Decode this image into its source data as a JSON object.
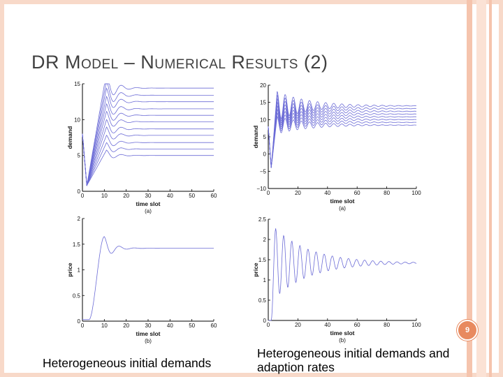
{
  "slide": {
    "title": "DR Model – Numerical Results (2)",
    "page_number": "9",
    "caption_left": "Heterogeneous initial demands",
    "caption_right": "Heterogeneous initial demands and adaption rates",
    "accent_color": "#e88a5f",
    "series_color": "#6b6bd6"
  },
  "chart_data": [
    {
      "id": "a",
      "type": "line",
      "sublabel": "(a)",
      "xlabel": "time slot",
      "ylabel": "demand",
      "xlim": [
        0,
        60
      ],
      "ylim": [
        0,
        15
      ],
      "xticks": [
        "0",
        "10",
        "20",
        "30",
        "40",
        "50",
        "60"
      ],
      "yticks": [
        "0",
        "5",
        "10",
        "15"
      ],
      "xtick_values": [
        0,
        10,
        20,
        30,
        40,
        50,
        60
      ],
      "ytick_values": [
        0,
        5,
        10,
        15
      ],
      "shape": {
        "kind": "damped",
        "dip_t": 2,
        "dip_y": 0.8,
        "rise_end": 11,
        "decay_tau": 4,
        "omega": 0.9,
        "overshoot": 0.15
      },
      "series": [
        {
          "steady": 14.4
        },
        {
          "steady": 13.4
        },
        {
          "steady": 12.5
        },
        {
          "steady": 11.5
        },
        {
          "steady": 10.6
        },
        {
          "steady": 9.7
        },
        {
          "steady": 8.7
        },
        {
          "steady": 7.8
        },
        {
          "steady": 6.8
        },
        {
          "steady": 5.9
        },
        {
          "steady": 5.0
        }
      ]
    },
    {
      "id": "b",
      "type": "line",
      "sublabel": "(b)",
      "xlabel": "time slot",
      "ylabel": "price",
      "xlim": [
        0,
        60
      ],
      "ylim": [
        0,
        2
      ],
      "xticks": [
        "0",
        "10",
        "20",
        "30",
        "40",
        "50",
        "60"
      ],
      "yticks": [
        "0",
        "0.5",
        "1",
        "1.5",
        "2"
      ],
      "xtick_values": [
        0,
        10,
        20,
        30,
        40,
        50,
        60
      ],
      "ytick_values": [
        0,
        0.5,
        1,
        1.5,
        2
      ],
      "shape": {
        "kind": "price",
        "low_until": 3,
        "low_y": 0.03,
        "rise_end": 10,
        "decay_tau": 4,
        "omega": 0.9,
        "overshoot": 0.16
      },
      "series": [
        {
          "steady": 1.42
        }
      ]
    },
    {
      "id": "c",
      "type": "line",
      "sublabel": "(a)",
      "xlabel": "time slot",
      "ylabel": "demand",
      "xlim": [
        0,
        100
      ],
      "ylim": [
        -10,
        20
      ],
      "xticks": [
        "0",
        "20",
        "40",
        "60",
        "80",
        "100"
      ],
      "yticks": [
        "−10",
        "−5",
        "0",
        "5",
        "10",
        "15",
        "20"
      ],
      "xtick_values": [
        0,
        20,
        40,
        60,
        80,
        100
      ],
      "ytick_values": [
        -10,
        -5,
        0,
        5,
        10,
        15,
        20
      ],
      "shape": {
        "kind": "damped",
        "dip_t": 2,
        "dip_y": -4,
        "rise_end": 6,
        "decay_tau": 22,
        "omega": 1.15,
        "overshoot": 0.3
      },
      "series": [
        {
          "steady": 14.0
        },
        {
          "steady": 13.2
        },
        {
          "steady": 12.4
        },
        {
          "steady": 11.6
        },
        {
          "steady": 10.8
        },
        {
          "steady": 10.0
        },
        {
          "steady": 9.2
        },
        {
          "steady": 8.4
        }
      ]
    },
    {
      "id": "d",
      "type": "line",
      "sublabel": "(b)",
      "xlabel": "time slot",
      "ylabel": "price",
      "xlim": [
        0,
        100
      ],
      "ylim": [
        0,
        2.5
      ],
      "xticks": [
        "0",
        "20",
        "40",
        "60",
        "80",
        "100"
      ],
      "yticks": [
        "0",
        "0.5",
        "1",
        "1.5",
        "2",
        "2.5"
      ],
      "xtick_values": [
        0,
        20,
        40,
        60,
        80,
        100
      ],
      "ytick_values": [
        0,
        0.5,
        1,
        1.5,
        2,
        2.5
      ],
      "shape": {
        "kind": "price",
        "low_until": 2,
        "low_y": 0.0,
        "rise_end": 5,
        "decay_tau": 24,
        "omega": 1.15,
        "overshoot": 0.6
      },
      "series": [
        {
          "steady": 1.42
        }
      ]
    }
  ]
}
